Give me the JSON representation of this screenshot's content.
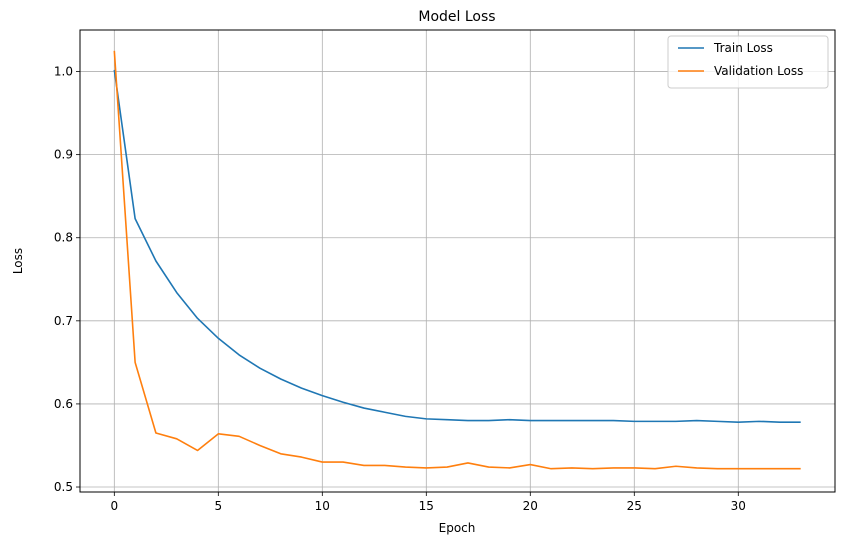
{
  "chart_data": {
    "type": "line",
    "title": "Model Loss",
    "xlabel": "Epoch",
    "ylabel": "Loss",
    "xlim": [
      -1.65,
      34.65
    ],
    "ylim": [
      0.494,
      1.05
    ],
    "xticks": [
      0,
      5,
      10,
      15,
      20,
      25,
      30
    ],
    "yticks": [
      0.5,
      0.6,
      0.7,
      0.8,
      0.9,
      1.0
    ],
    "ytick_labels": [
      "0.5",
      "0.6",
      "0.7",
      "0.8",
      "0.9",
      "1.0"
    ],
    "grid": true,
    "legend_position": "top-right",
    "x": [
      0,
      1,
      2,
      3,
      4,
      5,
      6,
      7,
      8,
      9,
      10,
      11,
      12,
      13,
      14,
      15,
      16,
      17,
      18,
      19,
      20,
      21,
      22,
      23,
      24,
      25,
      26,
      27,
      28,
      29,
      30,
      31,
      32,
      33
    ],
    "series": [
      {
        "name": "Train Loss",
        "color": "#1f77b4",
        "values": [
          1.002,
          0.823,
          0.772,
          0.734,
          0.703,
          0.679,
          0.659,
          0.643,
          0.63,
          0.619,
          0.61,
          0.602,
          0.595,
          0.59,
          0.585,
          0.582,
          0.581,
          0.58,
          0.58,
          0.581,
          0.58,
          0.58,
          0.58,
          0.58,
          0.58,
          0.579,
          0.579,
          0.579,
          0.58,
          0.579,
          0.578,
          0.579,
          0.578,
          0.578
        ]
      },
      {
        "name": "Validation Loss",
        "color": "#ff7f0e",
        "values": [
          1.025,
          0.65,
          0.565,
          0.558,
          0.544,
          0.564,
          0.561,
          0.55,
          0.54,
          0.536,
          0.53,
          0.53,
          0.526,
          0.526,
          0.524,
          0.523,
          0.524,
          0.529,
          0.524,
          0.523,
          0.527,
          0.522,
          0.523,
          0.522,
          0.523,
          0.523,
          0.522,
          0.525,
          0.523,
          0.522,
          0.522,
          0.522,
          0.522,
          0.522
        ]
      }
    ]
  }
}
